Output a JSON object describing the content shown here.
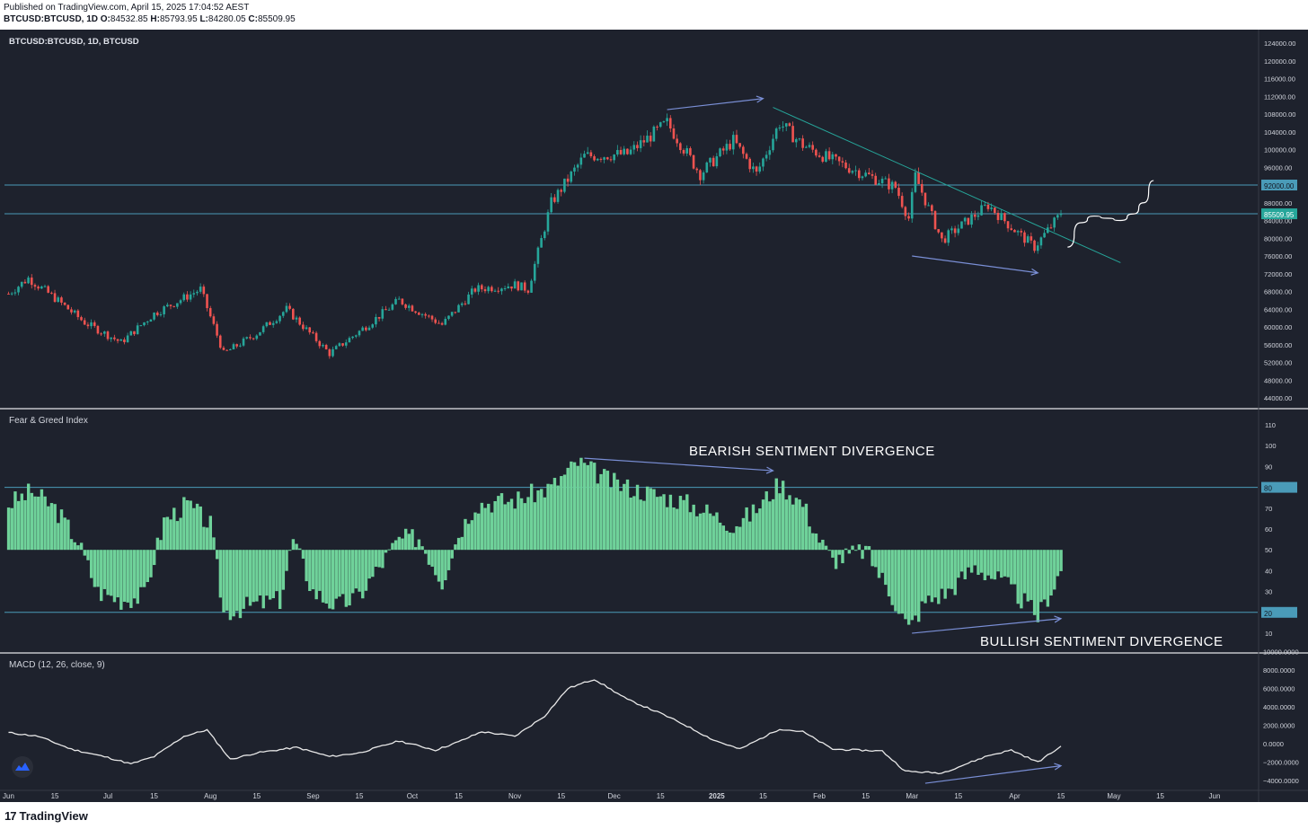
{
  "header": {
    "published": "Published on TradingView.com, April 15, 2025 17:04:52 AEST",
    "symbol_line": "BTCUSD:BTCUSD, 1D",
    "o_label": "O:",
    "o_value": "84532.85",
    "h_label": "H:",
    "h_value": "85793.95",
    "l_label": "L:",
    "l_value": "84280.05",
    "c_label": "C:",
    "c_value": "85509.95"
  },
  "footer": {
    "brand": "TradingView",
    "logo": "17"
  },
  "colors": {
    "bg": "#1e222d",
    "up": "#26a69a",
    "down": "#ef5350",
    "fg": "#6fd29a",
    "line": "#e8e8e8",
    "arrow": "#7a8fd6",
    "level": "#4a9bb8",
    "trend": "#26a69a"
  },
  "chart_data": [
    {
      "type": "candlestick",
      "title": "BTCUSD:BTCUSD, 1D, BTCUSD",
      "ylim": [
        42000,
        126000
      ],
      "yticks": [
        "124000.00",
        "120000.00",
        "116000.00",
        "112000.00",
        "108000.00",
        "104000.00",
        "100000.00",
        "96000.00",
        "92000.00",
        "88000.00",
        "84000.00",
        "80000.00",
        "76000.00",
        "72000.00",
        "68000.00",
        "64000.00",
        "60000.00",
        "56000.00",
        "52000.00",
        "48000.00",
        "44000.00"
      ],
      "level_labels": [
        "92000.00",
        "85509.95"
      ],
      "approx_closes": [
        {
          "date": "Jun 1",
          "close": 67500
        },
        {
          "date": "Jun 7",
          "close": 71000
        },
        {
          "date": "Jun 15",
          "close": 66500
        },
        {
          "date": "Jun 24",
          "close": 61000
        },
        {
          "date": "Jul 5",
          "close": 56500
        },
        {
          "date": "Jul 15",
          "close": 63000
        },
        {
          "date": "Jul 29",
          "close": 68500
        },
        {
          "date": "Aug 5",
          "close": 54000
        },
        {
          "date": "Aug 15",
          "close": 58500
        },
        {
          "date": "Aug 24",
          "close": 64000
        },
        {
          "date": "Sep 6",
          "close": 54000
        },
        {
          "date": "Sep 15",
          "close": 59000
        },
        {
          "date": "Sep 27",
          "close": 66000
        },
        {
          "date": "Oct 10",
          "close": 60500
        },
        {
          "date": "Oct 20",
          "close": 68500
        },
        {
          "date": "Nov 1",
          "close": 69500
        },
        {
          "date": "Nov 5",
          "close": 68500
        },
        {
          "date": "Nov 12",
          "close": 88000
        },
        {
          "date": "Nov 22",
          "close": 98500
        },
        {
          "date": "Dec 5",
          "close": 99000
        },
        {
          "date": "Dec 17",
          "close": 106000
        },
        {
          "date": "Dec 27",
          "close": 94500
        },
        {
          "date": "Jan 6",
          "close": 102000
        },
        {
          "date": "Jan 13",
          "close": 94500
        },
        {
          "date": "Jan 20",
          "close": 106000
        },
        {
          "date": "Jan 27",
          "close": 101000
        },
        {
          "date": "Feb 5",
          "close": 97500
        },
        {
          "date": "Feb 24",
          "close": 91500
        },
        {
          "date": "Feb 28",
          "close": 84500
        },
        {
          "date": "Mar 2",
          "close": 94000
        },
        {
          "date": "Mar 10",
          "close": 79500
        },
        {
          "date": "Mar 24",
          "close": 87500
        },
        {
          "date": "Mar 31",
          "close": 82500
        },
        {
          "date": "Apr 7",
          "close": 78000
        },
        {
          "date": "Apr 15",
          "close": 85510
        }
      ],
      "annotations": {
        "arrows": [
          {
            "from": {
              "date": "Dec 17",
              "value": 109000
            },
            "to": {
              "date": "Jan 15",
              "value": 111500
            }
          },
          {
            "from": {
              "date": "Mar 1",
              "value": 76000
            },
            "to": {
              "date": "Apr 8",
              "value": 72200
            }
          }
        ],
        "trendline": {
          "from": {
            "date": "Jan 18",
            "value": 109500
          },
          "to": {
            "date": "May 3",
            "value": 74500
          }
        },
        "projection": [
          {
            "date": "Apr 17",
            "value": 78000
          },
          {
            "date": "Apr 21",
            "value": 83500
          },
          {
            "date": "Apr 25",
            "value": 85000
          },
          {
            "date": "Apr 29",
            "value": 84500
          },
          {
            "date": "May 3",
            "value": 84000
          },
          {
            "date": "May 7",
            "value": 85500
          },
          {
            "date": "May 10",
            "value": 88000
          },
          {
            "date": "May 13",
            "value": 93000
          }
        ],
        "hlines": [
          92000,
          85509.95
        ]
      }
    },
    {
      "type": "bar",
      "title": "Fear & Greed Index",
      "ylim": [
        4,
        114
      ],
      "yticks": [
        "110",
        "100",
        "90",
        "80",
        "70",
        "60",
        "50",
        "40",
        "30",
        "20",
        "10"
      ],
      "baseline": 50,
      "level_labels": [
        "80",
        "20"
      ],
      "approx_values": [
        {
          "date": "Jun 1",
          "value": 72
        },
        {
          "date": "Jun 8",
          "value": 78
        },
        {
          "date": "Jun 15",
          "value": 70
        },
        {
          "date": "Jun 22",
          "value": 54
        },
        {
          "date": "Jun 28",
          "value": 30
        },
        {
          "date": "Jul 5",
          "value": 26
        },
        {
          "date": "Jul 12",
          "value": 28
        },
        {
          "date": "Jul 18",
          "value": 64
        },
        {
          "date": "Jul 25",
          "value": 72
        },
        {
          "date": "Aug 1",
          "value": 62
        },
        {
          "date": "Aug 5",
          "value": 20
        },
        {
          "date": "Aug 15",
          "value": 24
        },
        {
          "date": "Aug 22",
          "value": 26
        },
        {
          "date": "Aug 26",
          "value": 55
        },
        {
          "date": "Sep 1",
          "value": 30
        },
        {
          "date": "Sep 8",
          "value": 23
        },
        {
          "date": "Sep 15",
          "value": 28
        },
        {
          "date": "Sep 22",
          "value": 44
        },
        {
          "date": "Sep 27",
          "value": 55
        },
        {
          "date": "Oct 3",
          "value": 56
        },
        {
          "date": "Oct 10",
          "value": 35
        },
        {
          "date": "Oct 15",
          "value": 58
        },
        {
          "date": "Oct 20",
          "value": 72
        },
        {
          "date": "Nov 1",
          "value": 74
        },
        {
          "date": "Nov 12",
          "value": 80
        },
        {
          "date": "Nov 20",
          "value": 92
        },
        {
          "date": "Dec 1",
          "value": 82
        },
        {
          "date": "Dec 10",
          "value": 78
        },
        {
          "date": "Dec 20",
          "value": 74
        },
        {
          "date": "Dec 27",
          "value": 70
        },
        {
          "date": "Jan 6",
          "value": 62
        },
        {
          "date": "Jan 12",
          "value": 68
        },
        {
          "date": "Jan 20",
          "value": 82
        },
        {
          "date": "Jan 27",
          "value": 72
        },
        {
          "date": "Feb 1",
          "value": 55
        },
        {
          "date": "Feb 5",
          "value": 45
        },
        {
          "date": "Feb 15",
          "value": 50
        },
        {
          "date": "Feb 25",
          "value": 22
        },
        {
          "date": "Feb 28",
          "value": 12
        },
        {
          "date": "Mar 5",
          "value": 25
        },
        {
          "date": "Mar 12",
          "value": 30
        },
        {
          "date": "Mar 20",
          "value": 42
        },
        {
          "date": "Mar 28",
          "value": 35
        },
        {
          "date": "Apr 2",
          "value": 28
        },
        {
          "date": "Apr 8",
          "value": 18
        },
        {
          "date": "Apr 15",
          "value": 40
        }
      ],
      "annotations": {
        "texts": [
          "BEARISH SENTIMENT DIVERGENCE",
          "BULLISH SENTIMENT DIVERGENCE"
        ],
        "arrows": [
          {
            "from": {
              "date": "Nov 22",
              "value": 94
            },
            "to": {
              "date": "Jan 18",
              "value": 88
            }
          },
          {
            "from": {
              "date": "Mar 1",
              "value": 10
            },
            "to": {
              "date": "Apr 15",
              "value": 17
            }
          }
        ],
        "hlines": [
          80,
          20
        ]
      }
    },
    {
      "type": "line",
      "title": "MACD (12, 26, close, 9)",
      "ylim": [
        -4800,
        10600
      ],
      "yticks": [
        "10000.0000",
        "8000.0000",
        "6000.0000",
        "4000.0000",
        "2000.0000",
        "0.0000",
        "−2000.0000",
        "−4000.0000"
      ],
      "approx_values": [
        {
          "date": "Jun 1",
          "value": 1200
        },
        {
          "date": "Jun 10",
          "value": 800
        },
        {
          "date": "Jun 20",
          "value": -600
        },
        {
          "date": "Jul 1",
          "value": -1500
        },
        {
          "date": "Jul 8",
          "value": -2200
        },
        {
          "date": "Jul 15",
          "value": -1400
        },
        {
          "date": "Jul 24",
          "value": 800
        },
        {
          "date": "Jul 31",
          "value": 1500
        },
        {
          "date": "Aug 7",
          "value": -1700
        },
        {
          "date": "Aug 15",
          "value": -1000
        },
        {
          "date": "Aug 27",
          "value": -400
        },
        {
          "date": "Sep 6",
          "value": -1400
        },
        {
          "date": "Sep 15",
          "value": -1000
        },
        {
          "date": "Sep 27",
          "value": 300
        },
        {
          "date": "Oct 8",
          "value": -700
        },
        {
          "date": "Oct 15",
          "value": 200
        },
        {
          "date": "Oct 22",
          "value": 1300
        },
        {
          "date": "Nov 1",
          "value": 800
        },
        {
          "date": "Nov 10",
          "value": 3000
        },
        {
          "date": "Nov 17",
          "value": 6000
        },
        {
          "date": "Nov 25",
          "value": 7000
        },
        {
          "date": "Dec 5",
          "value": 4800
        },
        {
          "date": "Dec 15",
          "value": 3300
        },
        {
          "date": "Dec 22",
          "value": 2100
        },
        {
          "date": "Dec 31",
          "value": 400
        },
        {
          "date": "Jan 8",
          "value": -600
        },
        {
          "date": "Jan 20",
          "value": 1600
        },
        {
          "date": "Jan 27",
          "value": 1300
        },
        {
          "date": "Feb 5",
          "value": -600
        },
        {
          "date": "Feb 20",
          "value": -800
        },
        {
          "date": "Feb 27",
          "value": -3000
        },
        {
          "date": "Mar 10",
          "value": -3200
        },
        {
          "date": "Mar 24",
          "value": -1300
        },
        {
          "date": "Mar 31",
          "value": -700
        },
        {
          "date": "Apr 8",
          "value": -2000
        },
        {
          "date": "Apr 15",
          "value": -300
        }
      ],
      "annotations": {
        "arrows": [
          {
            "from": {
              "date": "Mar 5",
              "value": -4300
            },
            "to": {
              "date": "Apr 15",
              "value": -2400
            }
          }
        ]
      }
    }
  ],
  "time_axis": [
    "Jun",
    "15",
    "Jul",
    "15",
    "Aug",
    "15",
    "Sep",
    "15",
    "Oct",
    "15",
    "Nov",
    "15",
    "Dec",
    "15",
    "2025",
    "15",
    "Feb",
    "15",
    "Mar",
    "15",
    "Apr",
    "15",
    "May",
    "15",
    "Jun"
  ]
}
